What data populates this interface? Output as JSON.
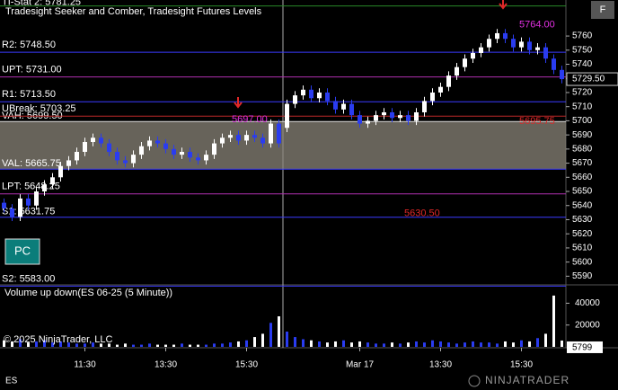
{
  "chart_data": [
    {
      "type": "candlestick",
      "title": "Tradesight Seeker and Comber, Tradesight Futures Levels",
      "categories": [
        null,
        null,
        null,
        null,
        null,
        null,
        null,
        null,
        null,
        null,
        "11:30",
        null,
        null,
        null,
        null,
        null,
        null,
        null,
        null,
        null,
        "13:30",
        null,
        null,
        null,
        null,
        null,
        null,
        null,
        null,
        null,
        "15:30",
        null,
        null,
        null,
        null,
        null,
        null,
        null,
        null,
        null,
        null,
        null,
        null,
        null,
        "Mar 17",
        null,
        null,
        null,
        null,
        null,
        null,
        null,
        null,
        null,
        "13:30",
        null,
        null,
        null,
        null,
        null,
        null,
        null,
        null,
        null,
        "15:30",
        null,
        null,
        null,
        null,
        null
      ],
      "open": [
        5642,
        5638,
        5632,
        5645,
        5640,
        5650,
        5655,
        5660,
        5668,
        5672,
        5678,
        5685,
        5688,
        5684,
        5678,
        5672,
        5670,
        5676,
        5682,
        5686,
        5684,
        5680,
        5676,
        5678,
        5674,
        5672,
        5676,
        5684,
        5688,
        5690,
        5686,
        5690,
        5688,
        5684,
        5698,
        5695,
        5712,
        5718,
        5722,
        5716,
        5720,
        5714,
        5708,
        5712,
        5704,
        5698,
        5700,
        5704,
        5706,
        5702,
        5704,
        5700,
        5706,
        5714,
        5720,
        5724,
        5732,
        5738,
        5744,
        5748,
        5752,
        5758,
        5762,
        5758,
        5752,
        5756,
        5750,
        5752,
        5744,
        5736
      ],
      "high": [
        5645,
        5641,
        5648,
        5648,
        5653,
        5658,
        5663,
        5671,
        5675,
        5681,
        5688,
        5691,
        5691,
        5687,
        5681,
        5675,
        5679,
        5685,
        5689,
        5689,
        5687,
        5683,
        5681,
        5681,
        5677,
        5679,
        5687,
        5691,
        5693,
        5693,
        5693,
        5693,
        5691,
        5701,
        5701,
        5715,
        5721,
        5725,
        5725,
        5723,
        5723,
        5717,
        5715,
        5715,
        5707,
        5703,
        5707,
        5709,
        5709,
        5707,
        5707,
        5709,
        5717,
        5723,
        5727,
        5735,
        5741,
        5747,
        5751,
        5755,
        5761,
        5765,
        5765,
        5761,
        5759,
        5759,
        5755,
        5755,
        5747,
        5739
      ],
      "low": [
        5635,
        5629,
        5629,
        5637,
        5637,
        5647,
        5652,
        5657,
        5665,
        5669,
        5675,
        5682,
        5681,
        5675,
        5669,
        5667,
        5667,
        5673,
        5679,
        5681,
        5677,
        5673,
        5673,
        5671,
        5669,
        5669,
        5673,
        5681,
        5685,
        5683,
        5683,
        5685,
        5681,
        5681,
        5681,
        5692,
        5709,
        5715,
        5713,
        5713,
        5711,
        5705,
        5705,
        5701,
        5695,
        5695,
        5697,
        5701,
        5699,
        5699,
        5697,
        5697,
        5703,
        5711,
        5717,
        5721,
        5729,
        5735,
        5741,
        5745,
        5749,
        5755,
        5755,
        5749,
        5749,
        5747,
        5747,
        5741,
        5733,
        5726.5
      ],
      "close": [
        5638,
        5632,
        5645,
        5640,
        5650,
        5655,
        5660,
        5668,
        5672,
        5678,
        5685,
        5688,
        5684,
        5678,
        5672,
        5670,
        5676,
        5682,
        5686,
        5684,
        5680,
        5676,
        5678,
        5674,
        5672,
        5676,
        5684,
        5688,
        5690,
        5686,
        5690,
        5688,
        5684,
        5698,
        5684,
        5712,
        5718,
        5722,
        5716,
        5720,
        5714,
        5708,
        5712,
        5704,
        5698,
        5700,
        5704,
        5706,
        5702,
        5704,
        5700,
        5706,
        5714,
        5720,
        5724,
        5732,
        5738,
        5744,
        5748,
        5752,
        5758,
        5762,
        5758,
        5752,
        5756,
        5750,
        5752,
        5744,
        5736,
        5729.5
      ],
      "close_label": "5729.50",
      "up_color": "#ffffff",
      "down_color": "#2a3cf0",
      "ylim": [
        5584.5,
        5785.5
      ],
      "yticks": [
        5590,
        5600,
        5610,
        5620,
        5630,
        5640,
        5650,
        5660,
        5670,
        5680,
        5690,
        5700,
        5710,
        5720,
        5730,
        5740,
        5750,
        5760
      ],
      "value_area_color": "#8a8478",
      "levels": [
        {
          "label": "TI-Stat 2: 5781.25",
          "value": 5781.25,
          "color": "#2a8a2a"
        },
        {
          "label": "R2: 5748.50",
          "value": 5748.5,
          "color": "#3a3aff"
        },
        {
          "label": "UPT: 5731.00",
          "value": 5731,
          "color": "#b030b0"
        },
        {
          "label": "R1: 5713.50",
          "value": 5713.5,
          "color": "#3a3aff"
        },
        {
          "label": "VAH: 5699.50",
          "value": 5699.5,
          "color": "#dddddd"
        },
        {
          "label": "VAL: 5665.75",
          "value": 5665.75,
          "color": "#3a3aff"
        },
        {
          "label": "UBreak: 5703.25",
          "value": 5703.25,
          "color": "#c02828"
        },
        {
          "label": "LPT: 5648.25",
          "value": 5648.25,
          "color": "#b030b0"
        },
        {
          "label": "S1: 5631.75",
          "value": 5631.75,
          "color": "#3a3aff"
        },
        {
          "label": "S2: 5583.00",
          "value": 5583,
          "color": "#3a3aff"
        }
      ],
      "annotations": [
        {
          "value": 5764,
          "label": "5764.00",
          "color": "#e030e0"
        },
        {
          "value": 5697,
          "label": "5697.00",
          "color": "#e030e0"
        },
        {
          "value": 5695.75,
          "label": "5695.75",
          "color": "#e02828"
        },
        {
          "value": 5630.5,
          "label": "5630.50",
          "color": "#e02828"
        }
      ]
    },
    {
      "type": "bar",
      "title": "Volume up down(ES 06-25 (5 Minute))",
      "values": [
        6000,
        5000,
        7000,
        4000,
        5000,
        6000,
        4000,
        5000,
        4000,
        3000,
        3000,
        4000,
        3000,
        3000,
        2000,
        3000,
        2000,
        2000,
        3000,
        2000,
        2000,
        2000,
        3000,
        2000,
        2000,
        2000,
        3000,
        3000,
        4000,
        5000,
        6000,
        9000,
        12000,
        22000,
        28000,
        14000,
        9000,
        7000,
        6000,
        5000,
        4000,
        5000,
        6000,
        4000,
        5000,
        4000,
        3000,
        3000,
        4000,
        3000,
        4000,
        5000,
        4000,
        6000,
        5000,
        4000,
        3000,
        4000,
        5000,
        4000,
        4000,
        3000,
        5000,
        4000,
        6000,
        5000,
        8000,
        12000,
        47000,
        5799
      ],
      "up_color": "#2a3cf0",
      "down_color": "#ffffff",
      "ylim": [
        0,
        56000
      ],
      "yticks": [
        20000,
        40000
      ]
    }
  ],
  "ui": {
    "instrument": "ES",
    "copyright": "© 2025 NinjaTrader, LLC",
    "button": "PC",
    "corner_button": "F",
    "logo": "NINJATRADER"
  }
}
